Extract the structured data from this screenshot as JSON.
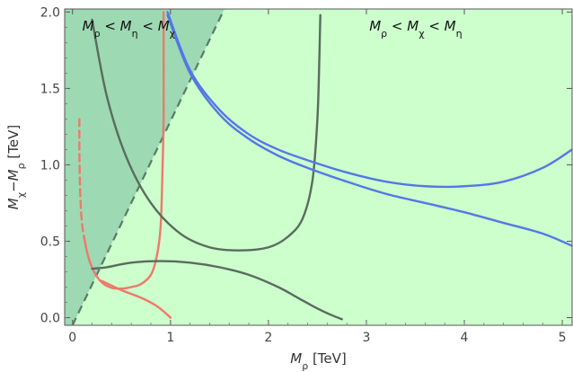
{
  "chart_data": {
    "type": "line",
    "xlabel": "M_ρ [TeV]",
    "ylabel": "M_χ−M_ρ [TeV]",
    "xlim": [
      -0.08,
      5.1
    ],
    "ylim": [
      -0.05,
      2.02
    ],
    "xticks": [
      0,
      1,
      2,
      3,
      4,
      5
    ],
    "yticks": [
      0.0,
      0.5,
      1.0,
      1.5,
      2.0
    ],
    "ytick_labels": [
      "0.0",
      "0.5",
      "1.0",
      "1.5",
      "2.0"
    ],
    "grid": false,
    "colors": {
      "background_region": "#ccffcc",
      "shaded_region": "#9dd9b3",
      "boundary_line": "#5a7a68",
      "red": "#f0786a",
      "gray": "#5b6b5f",
      "blue": "#5577e6"
    },
    "annotations": [
      {
        "text_parts": [
          "M",
          "ρ",
          " < M",
          "η",
          " < M",
          "χ"
        ],
        "x": 0.1,
        "y": 1.88
      },
      {
        "text_parts": [
          "M",
          "ρ",
          " < M",
          "χ",
          " < M",
          "η"
        ],
        "x": 3.03,
        "y": 1.88
      }
    ],
    "regions": [
      {
        "name": "",
        "polygon": [
          [
            -0.08,
            -0.05
          ],
          [
            0.0,
            -0.05
          ],
          [
            1.55,
            2.02
          ],
          [
            -0.08,
            2.02
          ]
        ]
      }
    ],
    "boundary": {
      "x": [
        0.0,
        1.55
      ],
      "y": [
        -0.05,
        2.02
      ]
    },
    "series": [
      {
        "color_key": "red",
        "style": "dashed",
        "x": [
          0.07,
          0.07,
          0.075,
          0.085,
          0.1,
          0.12
        ],
        "y": [
          1.3,
          1.1,
          0.9,
          0.72,
          0.6,
          0.52
        ]
      },
      {
        "color_key": "red",
        "style": "solid",
        "x": [
          0.12,
          0.16,
          0.22,
          0.3,
          0.4,
          0.5,
          0.6,
          0.7,
          0.8,
          0.86,
          0.9,
          0.92,
          0.93,
          0.93,
          0.93
        ],
        "y": [
          0.52,
          0.4,
          0.3,
          0.23,
          0.195,
          0.19,
          0.2,
          0.22,
          0.28,
          0.4,
          0.6,
          1.0,
          1.3,
          1.7,
          2.0
        ]
      },
      {
        "color_key": "red",
        "style": "solid",
        "x": [
          0.3,
          0.5,
          0.7,
          0.85,
          0.95,
          1.0
        ],
        "y": [
          0.24,
          0.18,
          0.13,
          0.08,
          0.03,
          0.0
        ]
      },
      {
        "color_key": "gray",
        "style": "solid",
        "x": [
          0.2,
          0.35,
          0.55,
          0.8,
          1.1,
          1.4,
          1.7,
          2.0,
          2.2,
          2.35,
          2.45,
          2.5,
          2.52,
          2.53
        ],
        "y": [
          1.95,
          1.45,
          1.05,
          0.75,
          0.55,
          0.46,
          0.44,
          0.46,
          0.53,
          0.65,
          0.9,
          1.3,
          1.7,
          1.98
        ]
      },
      {
        "color_key": "gray",
        "style": "solid",
        "x": [
          0.2,
          0.35,
          0.6,
          0.9,
          1.2,
          1.5,
          1.8,
          2.1,
          2.3,
          2.5,
          2.65,
          2.75
        ],
        "y": [
          0.32,
          0.33,
          0.36,
          0.37,
          0.36,
          0.33,
          0.28,
          0.2,
          0.13,
          0.06,
          0.015,
          -0.01
        ]
      },
      {
        "color_key": "blue",
        "style": "solid",
        "x": [
          0.97,
          1.2,
          1.5,
          1.8,
          2.1,
          2.4,
          2.8,
          3.2,
          3.6,
          4.0,
          4.4,
          4.8,
          5.1
        ],
        "y": [
          2.0,
          1.62,
          1.36,
          1.2,
          1.1,
          1.03,
          0.95,
          0.89,
          0.86,
          0.86,
          0.89,
          0.98,
          1.1
        ]
      },
      {
        "color_key": "blue",
        "style": "solid",
        "x": [
          0.97,
          1.2,
          1.5,
          1.8,
          2.1,
          2.4,
          2.8,
          3.2,
          3.6,
          4.0,
          4.4,
          4.8,
          5.1
        ],
        "y": [
          1.98,
          1.6,
          1.33,
          1.17,
          1.06,
          0.98,
          0.89,
          0.81,
          0.75,
          0.69,
          0.62,
          0.55,
          0.47
        ]
      }
    ]
  }
}
